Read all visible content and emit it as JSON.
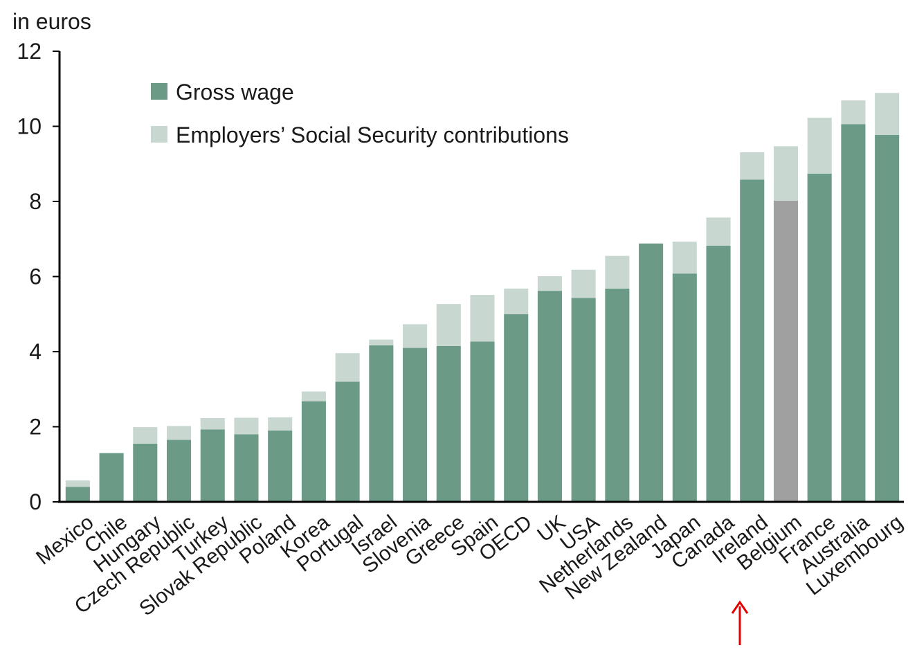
{
  "chart_data": {
    "type": "bar",
    "stacked": true,
    "y_unit_label": "in euros",
    "xlabel": "",
    "ylabel": "",
    "ylim": [
      0,
      12
    ],
    "yticks": [
      0,
      2,
      4,
      6,
      8,
      10,
      12
    ],
    "grid": false,
    "legend_position": "top-left",
    "categories": [
      "Mexico",
      "Chile",
      "Hungary",
      "Czech Republic",
      "Turkey",
      "Slovak Republic",
      "Poland",
      "Korea",
      "Portugal",
      "Israel",
      "Slovenia",
      "Greece",
      "Spain",
      "OECD",
      "UK",
      "USA",
      "Netherlands",
      "New Zealand",
      "Japan",
      "Canada",
      "Ireland",
      "Belgium",
      "France",
      "Australia",
      "Luxembourg"
    ],
    "series": [
      {
        "name": "Gross wage",
        "color": "#6b9a86",
        "values": [
          0.4,
          1.3,
          1.55,
          1.65,
          1.93,
          1.8,
          1.9,
          2.68,
          3.2,
          4.17,
          4.1,
          4.15,
          4.27,
          5.0,
          5.62,
          5.43,
          5.68,
          6.88,
          6.08,
          6.82,
          8.58,
          8.02,
          8.74,
          10.06,
          9.77
        ]
      },
      {
        "name": "Employers’ Social Security contributions",
        "color": "#c8d8d0",
        "values": [
          0.17,
          0.0,
          0.44,
          0.37,
          0.3,
          0.44,
          0.35,
          0.26,
          0.76,
          0.15,
          0.63,
          1.12,
          1.24,
          0.68,
          0.39,
          0.75,
          0.87,
          0.0,
          0.85,
          0.75,
          0.73,
          1.45,
          1.49,
          0.63,
          1.12
        ]
      }
    ],
    "highlight": {
      "category": "Belgium",
      "color": "#a0a0a0"
    },
    "annotation_arrow_color": "#e00000"
  }
}
